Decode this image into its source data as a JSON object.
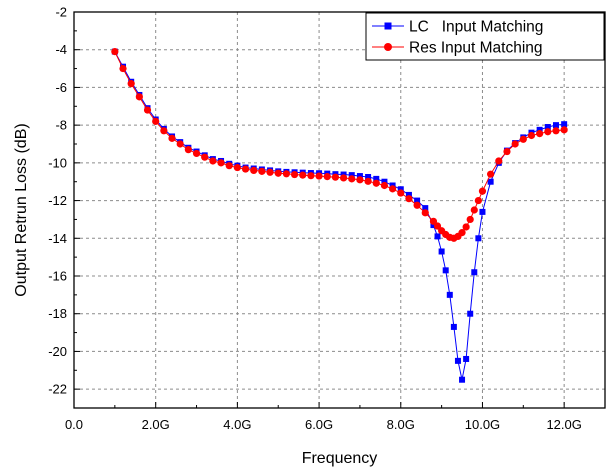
{
  "chart_data": {
    "type": "line",
    "title": "",
    "xlabel": "Frequency",
    "ylabel": "Output Retrun Loss (dB)",
    "xlim": [
      0,
      13
    ],
    "ylim": [
      -23,
      -2
    ],
    "x_ticks": [
      0,
      2,
      4,
      6,
      8,
      10,
      12
    ],
    "x_tick_labels": [
      "0.0",
      "2.0G",
      "4.0G",
      "6.0G",
      "8.0G",
      "10.0G",
      "12.0G"
    ],
    "y_ticks": [
      -22,
      -20,
      -18,
      -16,
      -14,
      -12,
      -10,
      -8,
      -6,
      -4,
      -2
    ],
    "y_tick_labels": [
      "-22",
      "-20",
      "-18",
      "-16",
      "-14",
      "-12",
      "-10",
      "-8",
      "-6",
      "-4",
      "-2"
    ],
    "grid": true,
    "legend_position": "top-right",
    "series": [
      {
        "name": "LC   Input Matching",
        "color": "#0000ff",
        "marker": "square",
        "x": [
          1.0,
          1.2,
          1.4,
          1.6,
          1.8,
          2.0,
          2.2,
          2.4,
          2.6,
          2.8,
          3.0,
          3.2,
          3.4,
          3.6,
          3.8,
          4.0,
          4.2,
          4.4,
          4.6,
          4.8,
          5.0,
          5.2,
          5.4,
          5.6,
          5.8,
          6.0,
          6.2,
          6.4,
          6.6,
          6.8,
          7.0,
          7.2,
          7.4,
          7.6,
          7.8,
          8.0,
          8.2,
          8.4,
          8.6,
          8.8,
          8.9,
          9.0,
          9.1,
          9.2,
          9.3,
          9.4,
          9.5,
          9.6,
          9.7,
          9.8,
          9.9,
          10.0,
          10.2,
          10.4,
          10.6,
          10.8,
          11.0,
          11.2,
          11.4,
          11.6,
          11.8,
          12.0
        ],
        "values": [
          -4.1,
          -4.9,
          -5.7,
          -6.4,
          -7.1,
          -7.7,
          -8.2,
          -8.6,
          -8.9,
          -9.2,
          -9.4,
          -9.6,
          -9.8,
          -9.9,
          -10.05,
          -10.15,
          -10.25,
          -10.3,
          -10.35,
          -10.4,
          -10.45,
          -10.48,
          -10.5,
          -10.52,
          -10.54,
          -10.55,
          -10.57,
          -10.6,
          -10.62,
          -10.65,
          -10.7,
          -10.75,
          -10.85,
          -11.0,
          -11.2,
          -11.4,
          -11.7,
          -12.0,
          -12.4,
          -13.3,
          -13.9,
          -14.7,
          -15.7,
          -17.0,
          -18.7,
          -20.5,
          -21.5,
          -20.4,
          -18.0,
          -15.8,
          -14.0,
          -12.6,
          -11.0,
          -10.0,
          -9.35,
          -8.95,
          -8.65,
          -8.4,
          -8.25,
          -8.1,
          -8.0,
          -7.95
        ]
      },
      {
        "name": "Res Input Matching",
        "color": "#ff0000",
        "marker": "circle",
        "x": [
          1.0,
          1.2,
          1.4,
          1.6,
          1.8,
          2.0,
          2.2,
          2.4,
          2.6,
          2.8,
          3.0,
          3.2,
          3.4,
          3.6,
          3.8,
          4.0,
          4.2,
          4.4,
          4.6,
          4.8,
          5.0,
          5.2,
          5.4,
          5.6,
          5.8,
          6.0,
          6.2,
          6.4,
          6.6,
          6.8,
          7.0,
          7.2,
          7.4,
          7.6,
          7.8,
          8.0,
          8.2,
          8.4,
          8.6,
          8.8,
          8.9,
          9.0,
          9.1,
          9.2,
          9.3,
          9.4,
          9.5,
          9.6,
          9.7,
          9.8,
          9.9,
          10.0,
          10.2,
          10.4,
          10.6,
          10.8,
          11.0,
          11.2,
          11.4,
          11.6,
          11.8,
          12.0
        ],
        "values": [
          -4.1,
          -5.0,
          -5.8,
          -6.5,
          -7.2,
          -7.8,
          -8.3,
          -8.7,
          -9.0,
          -9.3,
          -9.5,
          -9.7,
          -9.9,
          -10.0,
          -10.15,
          -10.25,
          -10.33,
          -10.4,
          -10.45,
          -10.5,
          -10.55,
          -10.58,
          -10.62,
          -10.65,
          -10.68,
          -10.7,
          -10.73,
          -10.76,
          -10.8,
          -10.85,
          -10.9,
          -10.98,
          -11.08,
          -11.2,
          -11.38,
          -11.6,
          -11.9,
          -12.25,
          -12.65,
          -13.1,
          -13.35,
          -13.6,
          -13.8,
          -13.95,
          -14.0,
          -13.9,
          -13.7,
          -13.4,
          -13.0,
          -12.5,
          -12.0,
          -11.5,
          -10.6,
          -9.9,
          -9.4,
          -9.0,
          -8.75,
          -8.55,
          -8.45,
          -8.35,
          -8.3,
          -8.25
        ]
      }
    ]
  }
}
